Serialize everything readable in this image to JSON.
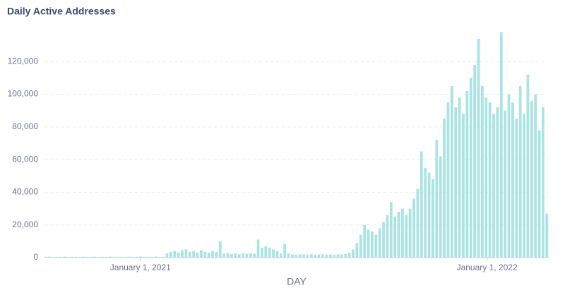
{
  "chart_data": {
    "type": "bar",
    "title": "Daily Active Addresses",
    "x_label": "DAY",
    "x": [
      -100,
      -96,
      -92,
      -88,
      -84,
      -80,
      -76,
      -72,
      -68,
      -64,
      -60,
      -56,
      -52,
      -48,
      -44,
      -40,
      -36,
      -32,
      -28,
      -24,
      -20,
      -16,
      -12,
      -8,
      -4,
      0,
      4,
      8,
      12,
      16,
      20,
      24,
      28,
      32,
      36,
      40,
      44,
      48,
      52,
      56,
      60,
      64,
      68,
      72,
      76,
      80,
      84,
      88,
      92,
      96,
      100,
      104,
      108,
      112,
      116,
      120,
      124,
      128,
      132,
      136,
      140,
      144,
      148,
      152,
      156,
      160,
      164,
      168,
      172,
      176,
      180,
      184,
      188,
      192,
      196,
      200,
      204,
      208,
      212,
      216,
      220,
      224,
      228,
      232,
      236,
      240,
      244,
      248,
      252,
      256,
      260,
      264,
      268,
      272,
      276,
      280,
      284,
      288,
      292,
      296,
      300,
      304,
      308,
      312,
      316,
      320,
      324,
      328,
      332,
      336,
      340,
      344,
      348,
      352,
      356,
      360,
      364,
      368,
      372,
      376,
      380,
      384,
      388,
      392,
      396,
      400,
      404,
      408,
      412,
      416,
      420,
      424,
      428
    ],
    "values": [
      500,
      600,
      400,
      500,
      500,
      600,
      400,
      500,
      500,
      400,
      600,
      500,
      500,
      600,
      400,
      500,
      500,
      600,
      400,
      500,
      500,
      400,
      600,
      500,
      500,
      600,
      400,
      500,
      500,
      600,
      400,
      500,
      2500,
      3500,
      4000,
      3000,
      4500,
      5000,
      3500,
      4000,
      3000,
      4500,
      3500,
      3000,
      4000,
      3500,
      10000,
      2500,
      2800,
      2200,
      2500,
      2000,
      2600,
      2300,
      2500,
      2400,
      11000,
      6000,
      7000,
      6000,
      5000,
      4000,
      2500,
      8500,
      2500,
      2000,
      1800,
      2000,
      1900,
      1800,
      2000,
      1700,
      1900,
      2000,
      1800,
      1900,
      1700,
      2000,
      1900,
      2200,
      3000,
      5000,
      9000,
      14000,
      20000,
      17000,
      16000,
      14000,
      18000,
      22000,
      26000,
      34000,
      25000,
      28000,
      30000,
      26000,
      30000,
      36000,
      42000,
      65000,
      55000,
      52000,
      48000,
      72000,
      62000,
      85000,
      95000,
      105000,
      92000,
      98000,
      88000,
      102000,
      110000,
      118000,
      134000,
      105000,
      98000,
      95000,
      88000,
      92000,
      138000,
      90000,
      100000,
      95000,
      85000,
      105000,
      88000,
      112000,
      96000,
      100000,
      78000,
      92000,
      27000
    ],
    "color": "#a9e4e3",
    "xlim": [
      -101,
      430
    ],
    "xticks": [
      {
        "value": 0,
        "label": "January 1, 2021"
      },
      {
        "value": 365,
        "label": "January 1, 2022"
      }
    ],
    "ylim": [
      0,
      140000
    ],
    "yticks": [
      0,
      {
        "value": 20000,
        "label": "20,000"
      },
      {
        "value": 40000,
        "label": "40,000"
      },
      {
        "value": 60000,
        "label": "60,000"
      },
      {
        "value": 80000,
        "label": "80,000"
      },
      {
        "value": 100000,
        "label": "100,000"
      },
      {
        "value": 120000,
        "label": "120,000"
      }
    ],
    "grid": true
  }
}
